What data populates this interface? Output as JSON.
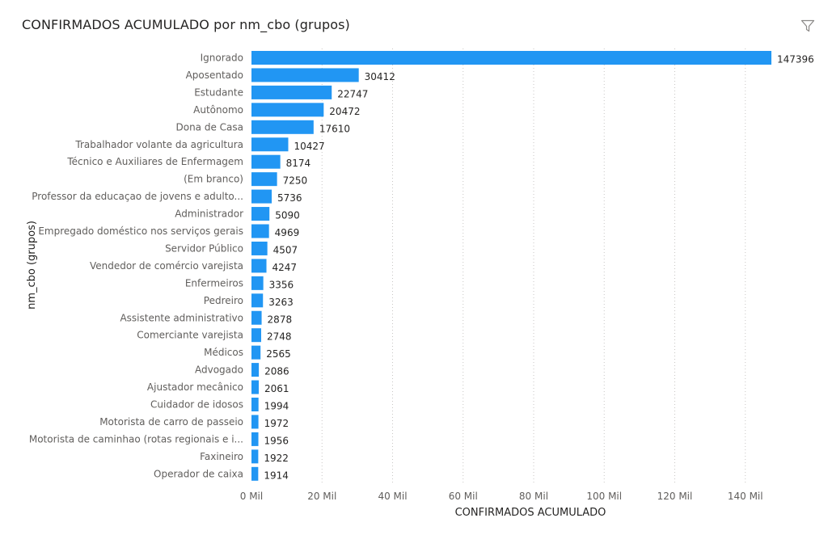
{
  "header": {
    "title": "CONFIRMADOS ACUMULADO por nm_cbo (grupos)",
    "filter_icon": "filter-icon"
  },
  "colors": {
    "bar": "#2196f3",
    "gridline": "#c8c6c4"
  },
  "chart_data": {
    "type": "bar",
    "orientation": "horizontal",
    "title": "CONFIRMADOS ACUMULADO por nm_cbo (grupos)",
    "xlabel": "CONFIRMADOS ACUMULADO",
    "ylabel": "nm_cbo (grupos)",
    "xlim": [
      0,
      147396
    ],
    "grid": "vertical dotted",
    "x_ticks": [
      {
        "value": 0,
        "label": "0 Mil"
      },
      {
        "value": 20000,
        "label": "20 Mil"
      },
      {
        "value": 40000,
        "label": "40 Mil"
      },
      {
        "value": 60000,
        "label": "60 Mil"
      },
      {
        "value": 80000,
        "label": "80 Mil"
      },
      {
        "value": 100000,
        "label": "100 Mil"
      },
      {
        "value": 120000,
        "label": "120 Mil"
      },
      {
        "value": 140000,
        "label": "140 Mil"
      }
    ],
    "categories": [
      "Ignorado",
      "Aposentado",
      "Estudante",
      "Autônomo",
      "Dona de Casa",
      "Trabalhador volante da agricultura",
      "Técnico e Auxiliares de Enfermagem",
      "(Em branco)",
      "Professor da educaçao de jovens e adulto...",
      "Administrador",
      "Empregado doméstico nos serviços gerais",
      "Servidor Público",
      "Vendedor de comércio varejista",
      "Enfermeiros",
      "Pedreiro",
      "Assistente administrativo",
      "Comerciante varejista",
      "Médicos",
      "Advogado",
      "Ajustador mecânico",
      "Cuidador de idosos",
      "Motorista de carro de passeio",
      "Motorista de caminhao (rotas regionais e i...",
      "Faxineiro",
      "Operador de caixa"
    ],
    "values": [
      147396,
      30412,
      22747,
      20472,
      17610,
      10427,
      8174,
      7250,
      5736,
      5090,
      4969,
      4507,
      4247,
      3356,
      3263,
      2878,
      2748,
      2565,
      2086,
      2061,
      1994,
      1972,
      1956,
      1922,
      1914
    ]
  }
}
